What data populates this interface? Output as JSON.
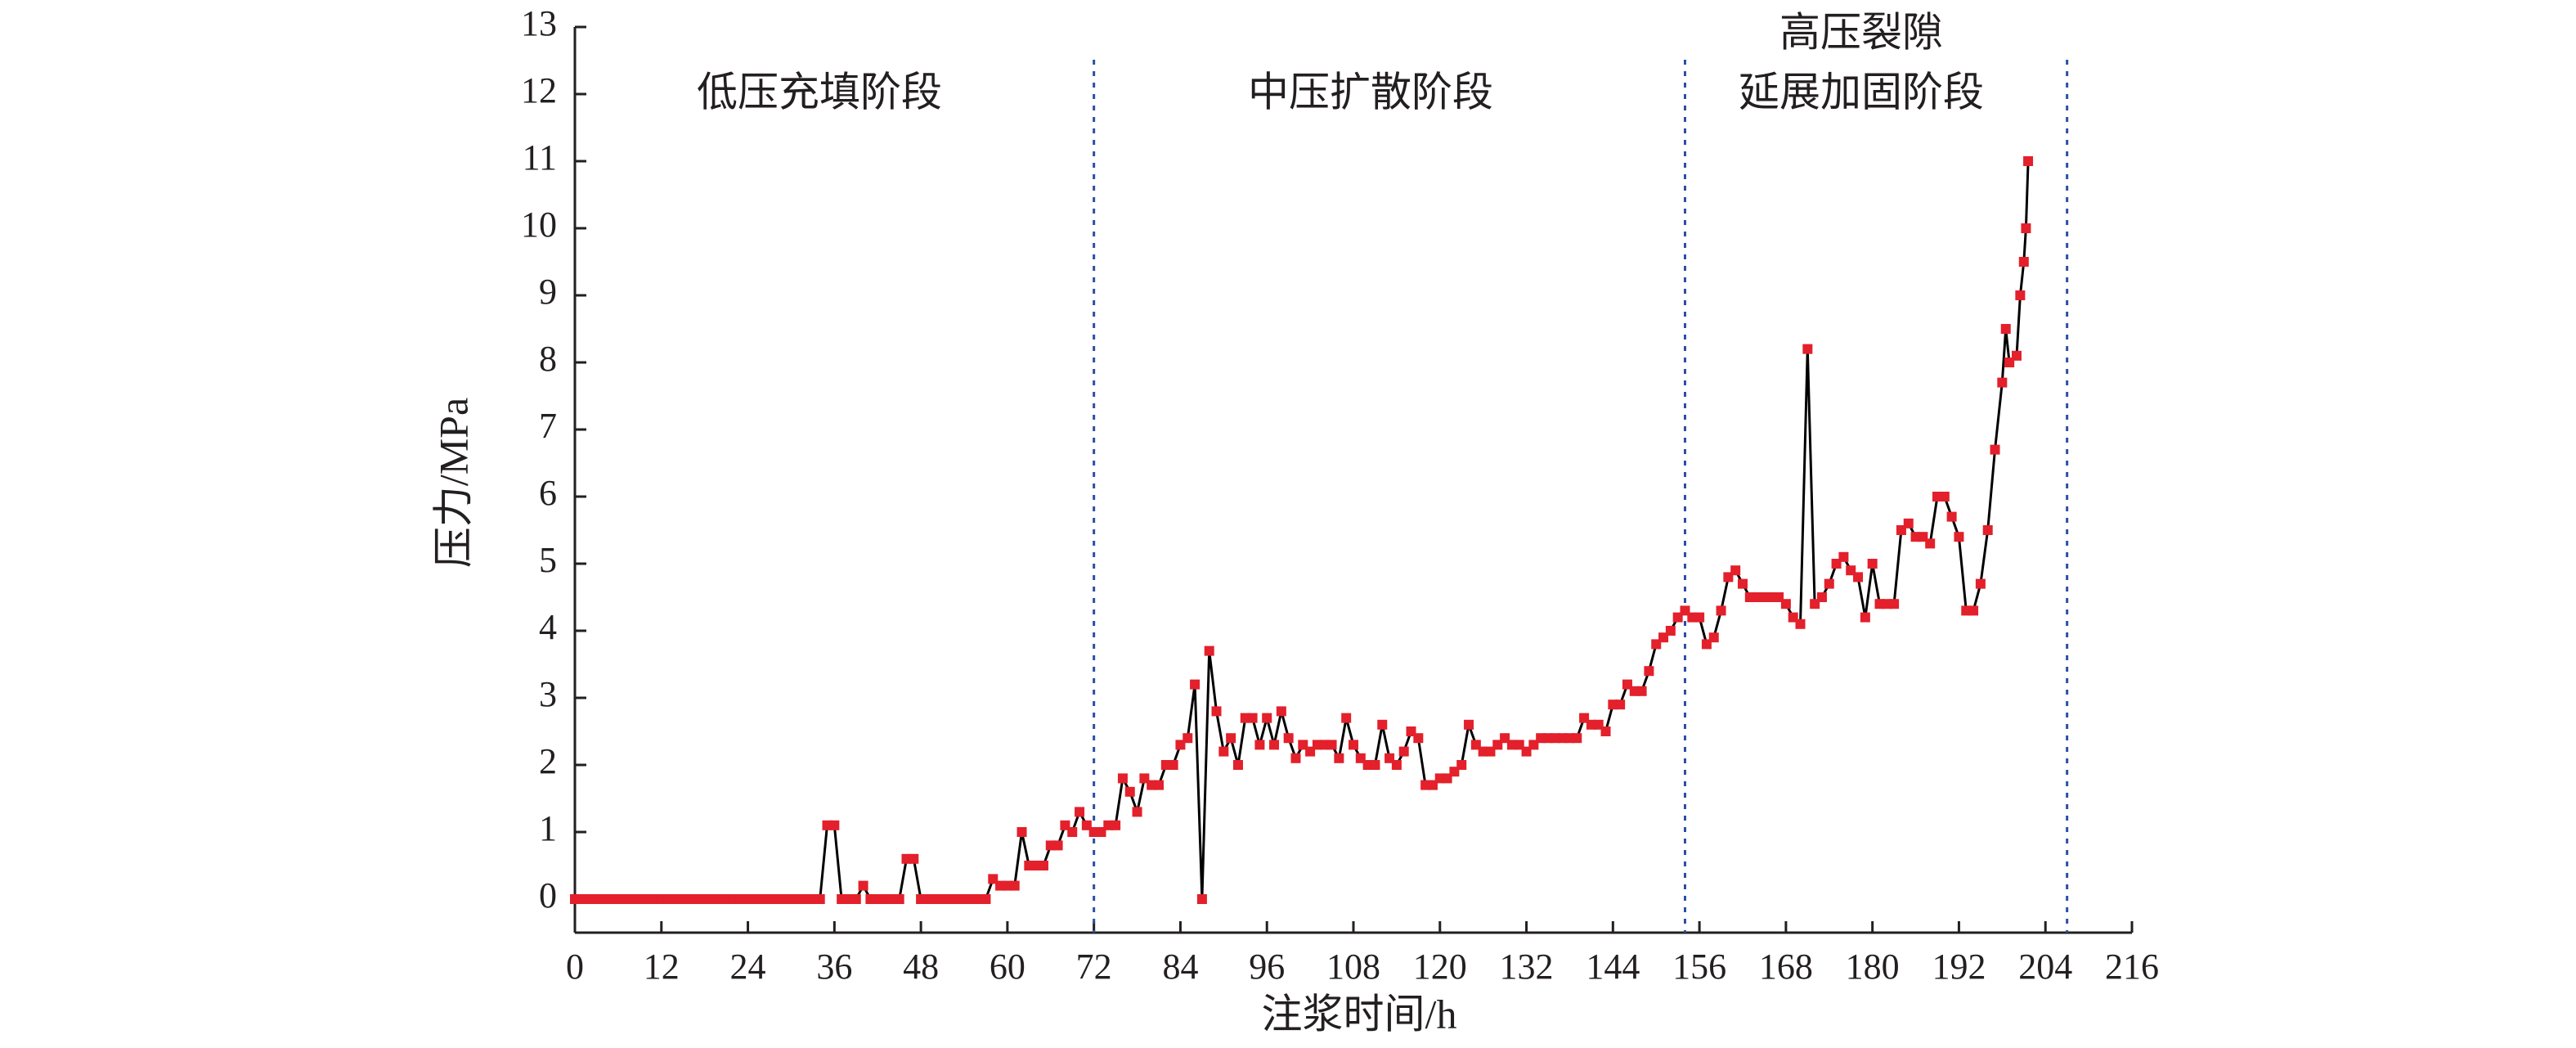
{
  "chart_data": {
    "type": "line",
    "xlabel": "注浆时间/h",
    "ylabel": "压力/MPa",
    "annotations": [
      {
        "lines": [
          "低压充填阶段"
        ]
      },
      {
        "lines": [
          "中压扩散阶段"
        ]
      },
      {
        "lines": [
          "高压裂隙",
          "延展加固阶段"
        ]
      }
    ],
    "phase_boundaries": [
      72,
      154,
      207
    ],
    "boundary_color": "#2b4ea0",
    "x": [
      0,
      1,
      2,
      3,
      4,
      5,
      6,
      7,
      8,
      9,
      10,
      11,
      12,
      13,
      14,
      15,
      16,
      17,
      18,
      19,
      20,
      21,
      22,
      23,
      24,
      25,
      26,
      27,
      28,
      29,
      30,
      31,
      32,
      33,
      34,
      35,
      36,
      37,
      38,
      39,
      40,
      41,
      42,
      43,
      44,
      45,
      46,
      47,
      48,
      49,
      50,
      51,
      52,
      53,
      54,
      55,
      56,
      57,
      58,
      59,
      60,
      61,
      62,
      63,
      64,
      65,
      66,
      67,
      68,
      69,
      70,
      71,
      72,
      73,
      74,
      75,
      76,
      77,
      78,
      79,
      80,
      81,
      82,
      83,
      84,
      85,
      86,
      87,
      88,
      89,
      90,
      91,
      92,
      93,
      94,
      95,
      96,
      97,
      98,
      99,
      100,
      101,
      102,
      103,
      104,
      105,
      106,
      107,
      108,
      109,
      110,
      111,
      112,
      113,
      114,
      115,
      116,
      117,
      118,
      119,
      120,
      121,
      122,
      123,
      124,
      125,
      126,
      127,
      128,
      129,
      130,
      131,
      132,
      133,
      134,
      135,
      136,
      137,
      138,
      139,
      140,
      141,
      142,
      143,
      144,
      145,
      146,
      147,
      148,
      149,
      150,
      151,
      152,
      153,
      154,
      155,
      156,
      157,
      158,
      159,
      160,
      161,
      162,
      163,
      164,
      165,
      166,
      167,
      168,
      169,
      170,
      171,
      172,
      173,
      174,
      175,
      176,
      177,
      178,
      179,
      180,
      181,
      182,
      183,
      184,
      185,
      186,
      187,
      188,
      189,
      190,
      191,
      192,
      193,
      194,
      195,
      196,
      197,
      198,
      198.5,
      199,
      200,
      200.5,
      201,
      201.3,
      201.6
    ],
    "series": [
      {
        "color": "#e3202b",
        "line_color": "#000000",
        "values": [
          0,
          0,
          0,
          0,
          0,
          0,
          0,
          0,
          0,
          0,
          0,
          0,
          0,
          0,
          0,
          0,
          0,
          0,
          0,
          0,
          0,
          0,
          0,
          0,
          0,
          0,
          0,
          0,
          0,
          0,
          0,
          0,
          0,
          0,
          0,
          1.1,
          1.1,
          0,
          0,
          0,
          0.2,
          0,
          0,
          0,
          0,
          0,
          0.6,
          0.6,
          0,
          0,
          0,
          0,
          0,
          0,
          0,
          0,
          0,
          0,
          0.3,
          0.2,
          0.2,
          0.2,
          1.0,
          0.5,
          0.5,
          0.5,
          0.8,
          0.8,
          1.1,
          1.0,
          1.3,
          1.1,
          1.0,
          1.0,
          1.1,
          1.1,
          1.8,
          1.6,
          1.3,
          1.8,
          1.7,
          1.7,
          2.0,
          2.0,
          2.3,
          2.4,
          3.2,
          0,
          3.7,
          2.8,
          2.2,
          2.4,
          2.0,
          2.7,
          2.7,
          2.3,
          2.7,
          2.3,
          2.8,
          2.4,
          2.1,
          2.3,
          2.2,
          2.3,
          2.3,
          2.3,
          2.1,
          2.7,
          2.3,
          2.1,
          2.0,
          2.0,
          2.6,
          2.1,
          2.0,
          2.2,
          2.5,
          2.4,
          1.7,
          1.7,
          1.8,
          1.8,
          1.9,
          2.0,
          2.6,
          2.3,
          2.2,
          2.2,
          2.3,
          2.4,
          2.3,
          2.3,
          2.2,
          2.3,
          2.4,
          2.4,
          2.4,
          2.4,
          2.4,
          2.4,
          2.7,
          2.6,
          2.6,
          2.5,
          2.9,
          2.9,
          3.2,
          3.1,
          3.1,
          3.4,
          3.8,
          3.9,
          4.0,
          4.2,
          4.3,
          4.2,
          4.2,
          3.8,
          3.9,
          4.3,
          4.8,
          4.9,
          4.7,
          4.5,
          4.5,
          4.5,
          4.5,
          4.5,
          4.4,
          4.2,
          4.1,
          8.2,
          4.4,
          4.5,
          4.7,
          5.0,
          5.1,
          4.9,
          4.8,
          4.2,
          5.0,
          4.4,
          4.4,
          4.4,
          5.5,
          5.6,
          5.4,
          5.4,
          5.3,
          6.0,
          6.0,
          5.7,
          5.4,
          4.3,
          4.3,
          4.7,
          5.5,
          6.7,
          7.7,
          8.5,
          8.0,
          8.1,
          9.0,
          9.5,
          10.0,
          11.0
        ]
      }
    ],
    "xlim": [
      0,
      216
    ],
    "xticks": [
      0,
      12,
      24,
      36,
      48,
      60,
      72,
      84,
      96,
      108,
      120,
      132,
      144,
      156,
      168,
      180,
      192,
      204,
      216
    ],
    "ylim": [
      -0.5,
      13
    ],
    "yticks": [
      0,
      1,
      2,
      3,
      4,
      5,
      6,
      7,
      8,
      9,
      10,
      11,
      12,
      13
    ]
  }
}
